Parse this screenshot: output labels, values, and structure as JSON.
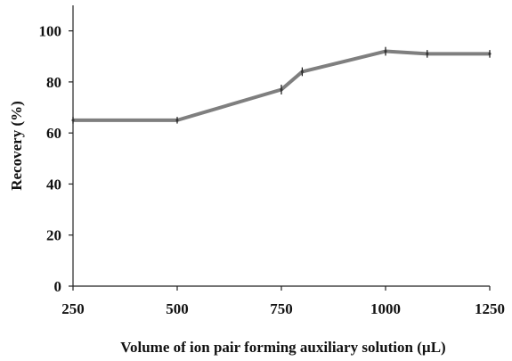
{
  "chart_data": {
    "type": "line",
    "xlabel": "Volume of ion pair forming auxiliary solution  (µL)",
    "ylabel": "Recovery (%)",
    "x_ticks": [
      250,
      500,
      750,
      1000,
      1250
    ],
    "y_ticks": [
      0,
      20,
      40,
      60,
      80,
      100
    ],
    "xlim": [
      250,
      1250
    ],
    "ylim": [
      0,
      110
    ],
    "grid": false,
    "series": [
      {
        "color": "#7f7f7f",
        "points": [
          {
            "x": 250,
            "y": 65
          },
          {
            "x": 500,
            "y": 65
          },
          {
            "x": 750,
            "y": 77
          },
          {
            "x": 800,
            "y": 84
          },
          {
            "x": 1000,
            "y": 92
          },
          {
            "x": 1100,
            "y": 91
          },
          {
            "x": 1250,
            "y": 91
          }
        ],
        "error": [
          0.6,
          0.6,
          1.2,
          1.0,
          1.0,
          0.8,
          0.8
        ]
      }
    ]
  }
}
